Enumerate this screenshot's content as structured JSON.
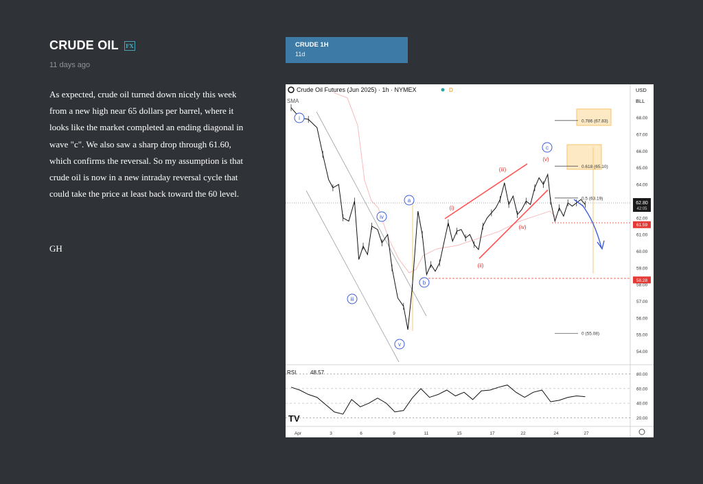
{
  "article": {
    "title": "CRUDE OIL",
    "badge": "FX",
    "time_ago": "11 days ago",
    "body": "As expected, crude oil turned down nicely this week from a new high near 65 dollars per barrel, where it looks like the market completed an ending diagonal in wave \"c\". We also saw a sharp drop through 61.60, which confirms the reversal. So my assumption is that crude oil is now in a new intraday reversal cycle that could take the price at least back toward the 60 level.",
    "signature": "GH"
  },
  "chart_tab": {
    "title": "CRUDE 1H",
    "subtitle": "11d"
  },
  "chart_header": {
    "symbol": "Crude Oil Futures (Jun 2025) · 1h · NYMEX",
    "indicator": "SMA",
    "currency": "USD",
    "currency_sub": "BLL",
    "status_badge": "D",
    "logo": "TV",
    "settings_icon": "gear-icon",
    "colors": {
      "up": "#26a69a",
      "price_tag": "#1a1a1a",
      "level_tag": "#e53935",
      "fib": "#f5c46b",
      "wave_blue": "#3b5bdb",
      "wave_red": "#e03131",
      "trend": "#ff5252"
    }
  },
  "chart_data": {
    "type": "candlestick",
    "xlabel": "",
    "ylabel": "",
    "ylim": [
      53.2,
      70.0
    ],
    "x_ticks": [
      "Apr",
      "3",
      "6",
      "9",
      "11",
      "15",
      "17",
      "22",
      "24",
      "27"
    ],
    "y_ticks": [
      "54.00",
      "55.00",
      "56.00",
      "57.00",
      "58.00",
      "59.00",
      "60.00",
      "61.00",
      "62.00",
      "63.00",
      "64.00",
      "65.00",
      "66.00",
      "67.00",
      "68.00"
    ],
    "last_price": "62.80",
    "countdown": "42:05",
    "level_tags": [
      {
        "value": 61.59,
        "label": "61.59"
      },
      {
        "value": 58.28,
        "label": "58.28"
      }
    ],
    "fib_levels": [
      {
        "ratio": "0.786",
        "value": 67.83,
        "label": "0.786 (67.83)"
      },
      {
        "ratio": "0.618",
        "value": 65.1,
        "label": "0.618 (65.10)"
      },
      {
        "ratio": "0.5",
        "value": 63.19,
        "label": "0.5 (63.19)"
      },
      {
        "ratio": "0",
        "value": 55.08,
        "label": "0 (55.08)"
      }
    ],
    "price_path": [
      {
        "t": 0,
        "v": 68.6
      },
      {
        "t": 6,
        "v": 68.0
      },
      {
        "t": 12,
        "v": 67.9
      },
      {
        "t": 18,
        "v": 67.4
      },
      {
        "t": 22,
        "v": 65.8
      },
      {
        "t": 26,
        "v": 64.3
      },
      {
        "t": 29,
        "v": 63.8
      },
      {
        "t": 33,
        "v": 64.0
      },
      {
        "t": 36,
        "v": 62.0
      },
      {
        "t": 40,
        "v": 61.8
      },
      {
        "t": 44,
        "v": 63.0
      },
      {
        "t": 47,
        "v": 59.5
      },
      {
        "t": 50,
        "v": 60.3
      },
      {
        "t": 53,
        "v": 59.8
      },
      {
        "t": 56,
        "v": 61.5
      },
      {
        "t": 60,
        "v": 61.3
      },
      {
        "t": 63,
        "v": 60.5
      },
      {
        "t": 67,
        "v": 61.0
      },
      {
        "t": 70,
        "v": 59.0
      },
      {
        "t": 74,
        "v": 57.2
      },
      {
        "t": 78,
        "v": 56.7
      },
      {
        "t": 81,
        "v": 55.3
      },
      {
        "t": 84,
        "v": 57.8
      },
      {
        "t": 88,
        "v": 62.4
      },
      {
        "t": 91,
        "v": 61.0
      },
      {
        "t": 94,
        "v": 58.6
      },
      {
        "t": 97,
        "v": 59.2
      },
      {
        "t": 100,
        "v": 58.8
      },
      {
        "t": 103,
        "v": 59.3
      },
      {
        "t": 106,
        "v": 60.5
      },
      {
        "t": 109,
        "v": 61.7
      },
      {
        "t": 112,
        "v": 60.6
      },
      {
        "t": 115,
        "v": 61.2
      },
      {
        "t": 118,
        "v": 61.3
      },
      {
        "t": 121,
        "v": 60.8
      },
      {
        "t": 124,
        "v": 61.0
      },
      {
        "t": 127,
        "v": 60.4
      },
      {
        "t": 130,
        "v": 60.1
      },
      {
        "t": 133,
        "v": 61.5
      },
      {
        "t": 136,
        "v": 62.0
      },
      {
        "t": 139,
        "v": 62.3
      },
      {
        "t": 142,
        "v": 62.6
      },
      {
        "t": 145,
        "v": 63.1
      },
      {
        "t": 148,
        "v": 64.1
      },
      {
        "t": 151,
        "v": 62.8
      },
      {
        "t": 154,
        "v": 63.3
      },
      {
        "t": 157,
        "v": 62.2
      },
      {
        "t": 160,
        "v": 62.5
      },
      {
        "t": 163,
        "v": 63.0
      },
      {
        "t": 166,
        "v": 62.8
      },
      {
        "t": 169,
        "v": 63.8
      },
      {
        "t": 172,
        "v": 64.4
      },
      {
        "t": 175,
        "v": 64.0
      },
      {
        "t": 178,
        "v": 64.6
      },
      {
        "t": 180,
        "v": 63.0
      },
      {
        "t": 183,
        "v": 61.8
      },
      {
        "t": 186,
        "v": 62.6
      },
      {
        "t": 189,
        "v": 62.1
      },
      {
        "t": 192,
        "v": 62.9
      },
      {
        "t": 195,
        "v": 62.7
      },
      {
        "t": 198,
        "v": 62.9
      },
      {
        "t": 201,
        "v": 63.1
      },
      {
        "t": 204,
        "v": 62.8
      }
    ],
    "rsi": {
      "name": "RSI",
      "value": "48.57",
      "levels": [
        "80.00",
        "60.00",
        "40.00",
        "20.00"
      ],
      "path": [
        {
          "t": 0,
          "v": 62
        },
        {
          "t": 6,
          "v": 58
        },
        {
          "t": 12,
          "v": 52
        },
        {
          "t": 18,
          "v": 48
        },
        {
          "t": 24,
          "v": 38
        },
        {
          "t": 30,
          "v": 28
        },
        {
          "t": 36,
          "v": 25
        },
        {
          "t": 42,
          "v": 45
        },
        {
          "t": 48,
          "v": 35
        },
        {
          "t": 54,
          "v": 40
        },
        {
          "t": 60,
          "v": 47
        },
        {
          "t": 66,
          "v": 40
        },
        {
          "t": 72,
          "v": 28
        },
        {
          "t": 78,
          "v": 30
        },
        {
          "t": 84,
          "v": 47
        },
        {
          "t": 90,
          "v": 60
        },
        {
          "t": 96,
          "v": 48
        },
        {
          "t": 102,
          "v": 52
        },
        {
          "t": 108,
          "v": 58
        },
        {
          "t": 114,
          "v": 50
        },
        {
          "t": 120,
          "v": 55
        },
        {
          "t": 126,
          "v": 45
        },
        {
          "t": 132,
          "v": 57
        },
        {
          "t": 138,
          "v": 58
        },
        {
          "t": 144,
          "v": 62
        },
        {
          "t": 150,
          "v": 65
        },
        {
          "t": 156,
          "v": 55
        },
        {
          "t": 162,
          "v": 48
        },
        {
          "t": 168,
          "v": 55
        },
        {
          "t": 174,
          "v": 58
        },
        {
          "t": 180,
          "v": 42
        },
        {
          "t": 186,
          "v": 44
        },
        {
          "t": 192,
          "v": 48
        },
        {
          "t": 198,
          "v": 50
        },
        {
          "t": 204,
          "v": 49
        }
      ]
    },
    "wave_labels": [
      {
        "text": "i",
        "style": "blue"
      },
      {
        "text": "iii",
        "style": "blue"
      },
      {
        "text": "iv",
        "style": "blue"
      },
      {
        "text": "v",
        "style": "blue"
      },
      {
        "text": "a",
        "style": "blue"
      },
      {
        "text": "b",
        "style": "blue"
      },
      {
        "text": "c",
        "style": "blue"
      },
      {
        "text": "(i)",
        "style": "red"
      },
      {
        "text": "(ii)",
        "style": "red"
      },
      {
        "text": "(iii)",
        "style": "red"
      },
      {
        "text": "(iv)",
        "style": "red"
      },
      {
        "text": "(v)",
        "style": "red"
      }
    ]
  }
}
